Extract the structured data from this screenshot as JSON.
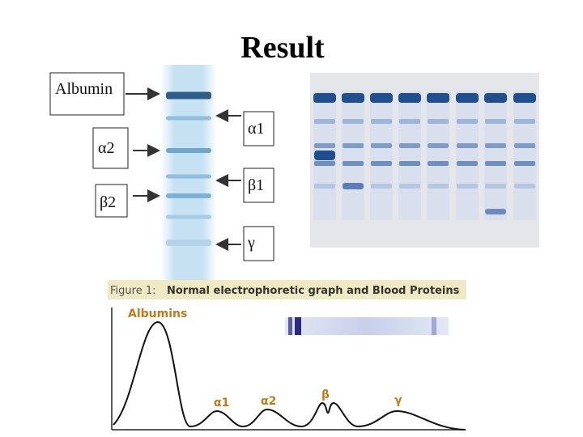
{
  "slide": {
    "title": "Result",
    "gel_labels": {
      "albumin": "Albumin",
      "alpha1": "α1",
      "alpha2": "α2",
      "beta1": "β1",
      "beta2": "β2",
      "gamma": "γ"
    },
    "figure": {
      "caption_prefix": "Figure 1:",
      "caption": "Normal electrophoretic graph and Blood Proteins",
      "peaks": {
        "albumins": "Albumins",
        "alpha1": "α1",
        "alpha2": "α2",
        "beta": "β",
        "gamma": "γ"
      }
    }
  }
}
